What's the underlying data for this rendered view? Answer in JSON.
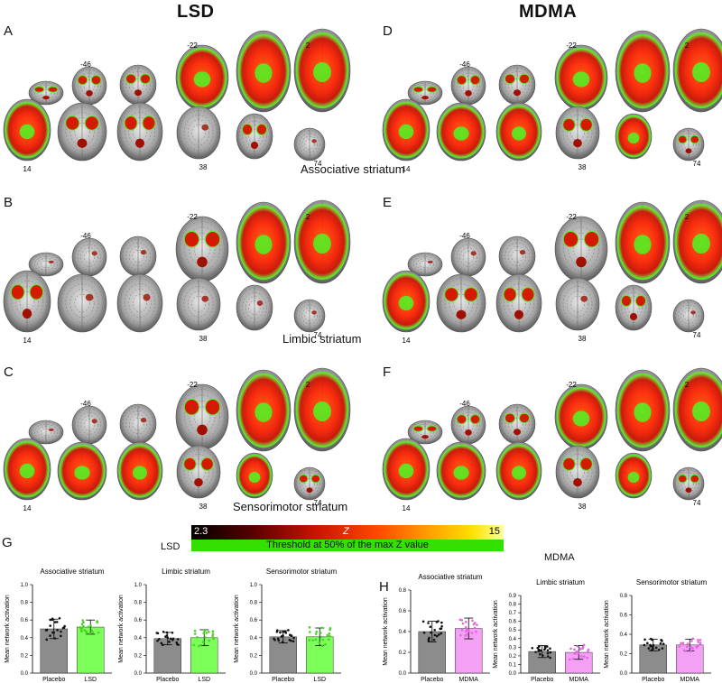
{
  "titles": {
    "left": "LSD",
    "right": "MDMA"
  },
  "panels": [
    {
      "letter": "A",
      "region": "Associative striatum",
      "pattern": "assoc-lsd"
    },
    {
      "letter": "B",
      "region": "Limbic striatum",
      "pattern": "limbic-lsd"
    },
    {
      "letter": "C",
      "region": "Sensorimotor striatum",
      "pattern": "sensori-lsd"
    },
    {
      "letter": "D",
      "region": "Associative striatum",
      "pattern": "assoc-mdma"
    },
    {
      "letter": "E",
      "region": "Limbic striatum",
      "pattern": "limbic-mdma"
    },
    {
      "letter": "F",
      "region": "Sensorimotor striatum",
      "pattern": "sensori-mdma"
    }
  ],
  "slice_labels": {
    "top": [
      "-46",
      "-22",
      "2"
    ],
    "bottom": [
      "14",
      "38",
      "74"
    ]
  },
  "colorbar": {
    "min": "2.3",
    "mid": "Z",
    "max": "15",
    "threshold_text": "Threshold at 50% of the max Z value"
  },
  "section_g": {
    "letter": "G",
    "drug": "LSD"
  },
  "section_h": {
    "letter": "H",
    "drug": "MDMA"
  },
  "chart_data": [
    {
      "type": "bar",
      "group": "LSD",
      "title": "Associative striatum",
      "ylabel": "Mean network activation",
      "categories": [
        "Placebo",
        "LSD"
      ],
      "values": [
        0.5,
        0.52
      ],
      "errors": [
        0.11,
        0.08
      ],
      "ylim": [
        0,
        1.0
      ],
      "yticks": [
        "0.0",
        "0.2",
        "0.4",
        "0.6",
        "0.8",
        "1.0"
      ],
      "colors": [
        "#8c8c8c",
        "#7dff5a"
      ]
    },
    {
      "type": "bar",
      "group": "LSD",
      "title": "Limbic striatum",
      "ylabel": "Mean network activation",
      "categories": [
        "Placebo",
        "LSD"
      ],
      "values": [
        0.39,
        0.4
      ],
      "errors": [
        0.07,
        0.09
      ],
      "ylim": [
        0,
        1.0
      ],
      "yticks": [
        "0.0",
        "0.2",
        "0.4",
        "0.6",
        "0.8",
        "1.0"
      ],
      "colors": [
        "#8c8c8c",
        "#7dff5a"
      ]
    },
    {
      "type": "bar",
      "group": "LSD",
      "title": "Sensorimotor striatum",
      "ylabel": "Mean network activation",
      "categories": [
        "Placebo",
        "LSD"
      ],
      "values": [
        0.41,
        0.41
      ],
      "errors": [
        0.07,
        0.1
      ],
      "ylim": [
        0,
        1.0
      ],
      "yticks": [
        "0.0",
        "0.2",
        "0.4",
        "0.6",
        "0.8",
        "1.0"
      ],
      "colors": [
        "#8c8c8c",
        "#7dff5a"
      ]
    },
    {
      "type": "bar",
      "group": "MDMA",
      "title": "Associative striatum",
      "ylabel": "Mean network activation",
      "categories": [
        "Placebo",
        "MDMA"
      ],
      "values": [
        0.4,
        0.43
      ],
      "errors": [
        0.1,
        0.1
      ],
      "ylim": [
        0,
        0.8
      ],
      "yticks": [
        "0.0",
        "0.2",
        "0.4",
        "0.6",
        "0.8"
      ],
      "colors": [
        "#8c8c8c",
        "#f4a0f4"
      ]
    },
    {
      "type": "bar",
      "group": "MDMA",
      "title": "Limbic striatum",
      "ylabel": "Mean network activation",
      "categories": [
        "Placebo",
        "MDMA"
      ],
      "values": [
        0.25,
        0.24
      ],
      "errors": [
        0.07,
        0.08
      ],
      "ylim": [
        0,
        0.9
      ],
      "yticks": [
        "0.0",
        "0.1",
        "0.2",
        "0.3",
        "0.4",
        "0.5",
        "0.6",
        "0.7",
        "0.8",
        "0.9"
      ],
      "colors": [
        "#8c8c8c",
        "#f4a0f4"
      ]
    },
    {
      "type": "bar",
      "group": "MDMA",
      "title": "Sensorimotor striatum",
      "ylabel": "Mean network activation",
      "categories": [
        "Placebo",
        "MDMA"
      ],
      "values": [
        0.29,
        0.29
      ],
      "errors": [
        0.06,
        0.06
      ],
      "ylim": [
        0,
        0.8
      ],
      "yticks": [
        "0.0",
        "0.2",
        "0.4",
        "0.6",
        "0.8"
      ],
      "colors": [
        "#8c8c8c",
        "#f4a0f4"
      ]
    }
  ]
}
